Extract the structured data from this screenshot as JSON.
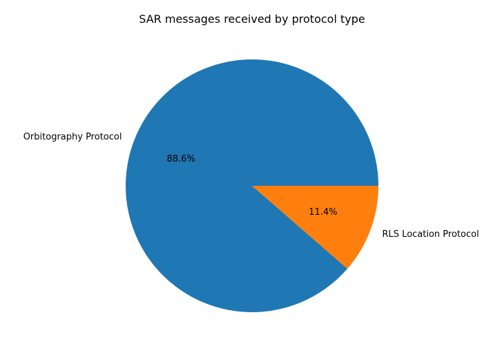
{
  "chart_data": {
    "type": "pie",
    "title": "SAR messages received by protocol type",
    "labels": [
      "Orbitography Protocol",
      "RLS Location Protocol"
    ],
    "values": [
      88.6,
      11.4
    ],
    "percent_labels": [
      "88.6%",
      "11.4%"
    ],
    "colors": [
      "#1f77b4",
      "#ff7f0e"
    ],
    "start_angle_deg": 0,
    "direction": "counterclockwise"
  }
}
